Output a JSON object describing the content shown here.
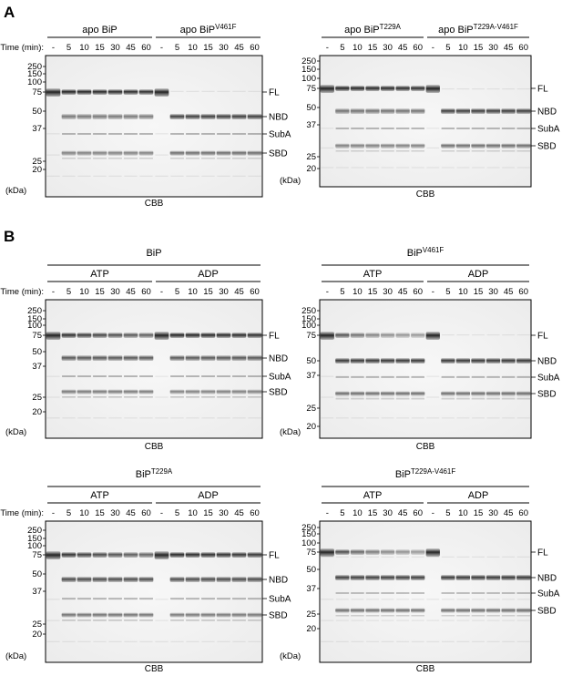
{
  "panel_labels": [
    "A",
    "B"
  ],
  "time_label": "Time (min):",
  "time_points": [
    "-",
    "5",
    "10",
    "15",
    "30",
    "45",
    "60"
  ],
  "markers": [
    "250",
    "150",
    "100",
    "75",
    "50",
    "37",
    "25",
    "20"
  ],
  "kda_label": "(kDa)",
  "cbb_label": "CBB",
  "band_labels": [
    "FL",
    "NBD",
    "SubA",
    "SBD"
  ],
  "nucleotides": [
    "ATP",
    "ADP"
  ],
  "gels": [
    {
      "id": "a-left",
      "groups": [
        {
          "prefix": "apo BiP",
          "sup": "",
          "fl_decay": 0.02,
          "fl_base": 1,
          "nbd": 0.35,
          "sbd": 0.45
        },
        {
          "prefix": "apo BiP",
          "sup": "V461F",
          "fl_decay": 0.985,
          "fl_base": 0.05,
          "nbd": 0.8,
          "sbd": 0.6
        }
      ]
    },
    {
      "id": "a-right",
      "groups": [
        {
          "prefix": "apo BiP",
          "sup": "T229A",
          "fl_decay": 0.02,
          "fl_base": 1,
          "nbd": 0.4,
          "sbd": 0.45
        },
        {
          "prefix": "apo BiP",
          "sup": "T229A-V461F",
          "fl_decay": 0.985,
          "fl_base": 0.05,
          "nbd": 0.8,
          "sbd": 0.6
        }
      ]
    },
    {
      "id": "b1",
      "title": {
        "prefix": "BiP",
        "sup": ""
      },
      "groups": [
        {
          "fl_decay": 0.12,
          "fl_base": 1,
          "nbd": 0.6,
          "sbd": 0.5
        },
        {
          "fl_decay": 0.02,
          "fl_base": 1,
          "nbd": 0.6,
          "sbd": 0.45
        }
      ]
    },
    {
      "id": "b2",
      "title": {
        "prefix": "BiP",
        "sup": "V461F"
      },
      "groups": [
        {
          "fl_decay": 0.45,
          "fl_base": 1,
          "nbd": 0.85,
          "sbd": 0.6
        },
        {
          "fl_decay": 0.985,
          "fl_base": 0.05,
          "nbd": 0.85,
          "sbd": 0.6
        }
      ]
    },
    {
      "id": "b3",
      "title": {
        "prefix": "BiP",
        "sup": "T229A"
      },
      "groups": [
        {
          "fl_decay": 0.12,
          "fl_base": 1,
          "nbd": 0.7,
          "sbd": 0.55
        },
        {
          "fl_decay": 0.03,
          "fl_base": 1,
          "nbd": 0.7,
          "sbd": 0.5
        }
      ]
    },
    {
      "id": "b4",
      "title": {
        "prefix": "BiP",
        "sup": "T229A-V461F"
      },
      "groups": [
        {
          "fl_decay": 0.35,
          "fl_base": 1,
          "nbd": 0.8,
          "sbd": 0.6
        },
        {
          "fl_decay": 0.97,
          "fl_base": 0.08,
          "nbd": 0.85,
          "sbd": 0.6
        }
      ]
    }
  ]
}
